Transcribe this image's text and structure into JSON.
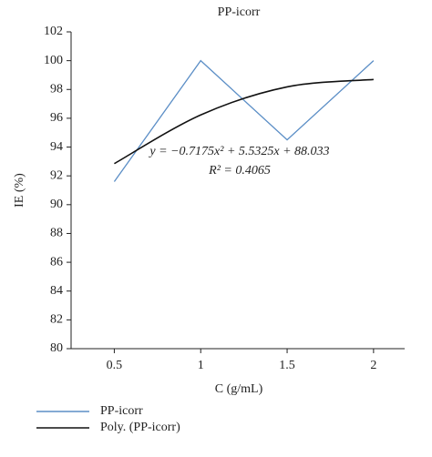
{
  "chart_data": {
    "type": "line",
    "title": "PP-icorr",
    "x_label": "C (g/mL)",
    "y_label": "IE (%)",
    "x": [
      0.5,
      1,
      1.5,
      2
    ],
    "series": [
      {
        "name": "PP-icorr",
        "color": "#5b8ec6",
        "values": [
          91.6,
          100,
          94.5,
          100
        ]
      },
      {
        "name": "Poly. (PP-icorr)",
        "color": "#111111",
        "values": [
          92.85,
          96.23,
          98.18,
          98.69
        ]
      }
    ],
    "annotations": [
      "y = −0.7175x² + 5.5325x + 88.033",
      "R² = 0.4065"
    ],
    "xlim": [
      0.25,
      2.18
    ],
    "xticks": [
      0.5,
      1,
      1.5,
      2
    ],
    "ylim": [
      80,
      102
    ],
    "yticks": [
      80,
      82,
      84,
      86,
      88,
      90,
      92,
      94,
      96,
      98,
      100,
      102
    ],
    "grid": false
  }
}
